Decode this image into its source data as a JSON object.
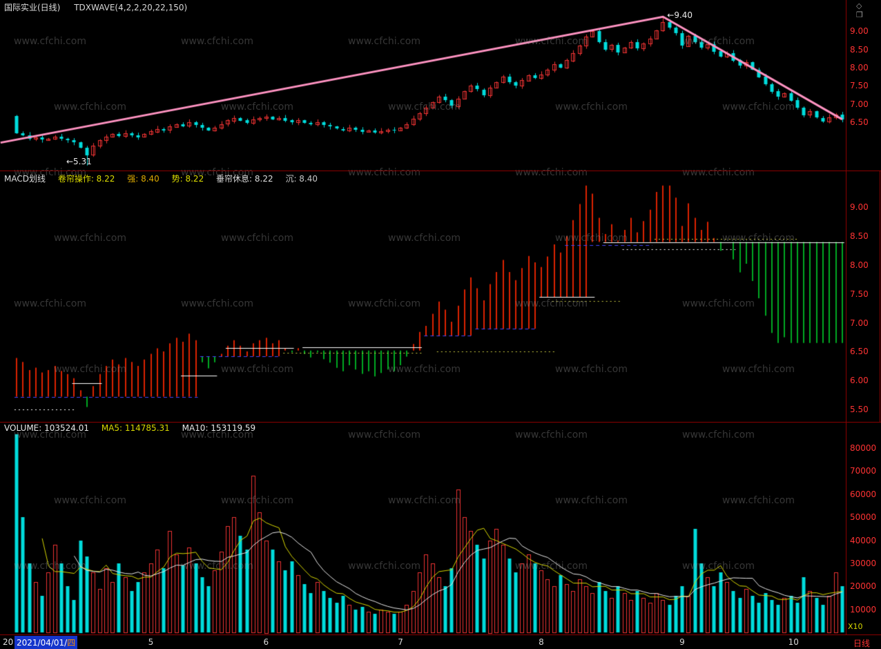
{
  "header": {
    "title": "国际实业(日线)",
    "indicator": "TDXWAVE(4,2,2,20,22,150)",
    "icons": {
      "diamond": "◇",
      "window": "❒"
    }
  },
  "watermark": "www.cfchi.com",
  "colors": {
    "up": "#ee3333",
    "down": "#00dcdc",
    "wave": "#ff93c2",
    "bar_up": "#dd2200",
    "bar_down": "#00aa22",
    "ma5": "#d8d800",
    "ma10": "#e8e8e8",
    "axis_text": "#ff3333",
    "border": "#8b0000"
  },
  "main_chart": {
    "low_annotation": "←5.31",
    "high_annotation": "←9.40",
    "y_ticks": [
      "9.00",
      "8.50",
      "8.00",
      "7.50",
      "7.00",
      "6.50"
    ]
  },
  "macd_panel": {
    "labels": [
      {
        "text": "MACD划线",
        "color": "#dddddd"
      },
      {
        "text": "卷帘操作: 8.22",
        "color": "#dddd00"
      },
      {
        "text": "强: 8.40",
        "color": "#ddaa00"
      },
      {
        "text": "势: 8.22",
        "color": "#dddd00"
      },
      {
        "text": "垂帘休息: 8.22",
        "color": "#dddddd"
      },
      {
        "text": "沉: 8.40",
        "color": "#c8c8c8"
      }
    ],
    "y_ticks": [
      "9.00",
      "8.50",
      "8.00",
      "7.50",
      "7.00",
      "6.50",
      "6.00",
      "5.50"
    ]
  },
  "volume_panel": {
    "labels": [
      {
        "text": "VOLUME: 103524.01",
        "color": "#e8e8e8"
      },
      {
        "text": "MA5: 114785.31",
        "color": "#d8d800"
      },
      {
        "text": "MA10: 153119.59",
        "color": "#e8e8e8"
      }
    ],
    "y_ticks": [
      "80000",
      "70000",
      "60000",
      "50000",
      "40000",
      "30000",
      "20000",
      "10000"
    ],
    "unit_label": "X10"
  },
  "bottom_bar": {
    "prefix": "20",
    "date": "2021/04/01/",
    "weekday": "四",
    "period_label": "日线",
    "months": [
      {
        "label": "5",
        "day": 21
      },
      {
        "label": "6",
        "day": 39
      },
      {
        "label": "7",
        "day": 60
      },
      {
        "label": "8",
        "day": 82
      },
      {
        "label": "9",
        "day": 104
      },
      {
        "label": "10",
        "day": 121
      }
    ]
  },
  "chart_data": [
    {
      "type": "candlestick",
      "title": "国际实业 daily price with TDXWAVE trend line",
      "x_range": "2021/04/01 - 2021/10",
      "ylim": [
        5.25,
        9.48
      ],
      "first_open": 6.68,
      "closes": [
        6.2,
        6.15,
        6.05,
        6.08,
        6.02,
        6.05,
        6.1,
        6.04,
        6.0,
        5.95,
        5.8,
        5.6,
        5.85,
        6.0,
        6.1,
        6.18,
        6.12,
        6.2,
        6.15,
        6.1,
        6.18,
        6.25,
        6.32,
        6.28,
        6.38,
        6.45,
        6.4,
        6.5,
        6.42,
        6.35,
        6.28,
        6.35,
        6.45,
        6.55,
        6.62,
        6.55,
        6.48,
        6.58,
        6.62,
        6.65,
        6.58,
        6.62,
        6.55,
        6.5,
        6.55,
        6.48,
        6.44,
        6.5,
        6.42,
        6.38,
        6.32,
        6.28,
        6.35,
        6.3,
        6.25,
        6.28,
        6.22,
        6.26,
        6.3,
        6.28,
        6.35,
        6.45,
        6.6,
        6.75,
        6.9,
        7.05,
        7.2,
        7.1,
        6.95,
        7.15,
        7.35,
        7.5,
        7.4,
        7.25,
        7.45,
        7.6,
        7.75,
        7.6,
        7.5,
        7.65,
        7.8,
        7.72,
        7.82,
        7.95,
        8.1,
        8.0,
        8.2,
        8.4,
        8.6,
        8.85,
        9.0,
        8.7,
        8.5,
        8.62,
        8.42,
        8.55,
        8.7,
        8.52,
        8.66,
        8.8,
        9.02,
        9.25,
        9.1,
        8.95,
        8.6,
        8.88,
        8.7,
        8.55,
        8.65,
        8.45,
        8.3,
        8.4,
        8.2,
        8.05,
        8.15,
        7.95,
        7.75,
        7.55,
        7.35,
        7.2,
        7.3,
        7.1,
        6.9,
        6.7,
        6.8,
        6.62,
        6.52,
        6.64,
        6.72,
        6.58
      ],
      "low_override_day": 11,
      "low_override_value": 5.31,
      "high_override_day": 101,
      "high_override_value": 9.4,
      "wave_points": [
        [
          -2.5,
          5.94
        ],
        [
          101,
          9.4
        ],
        [
          129,
          6.58
        ]
      ]
    },
    {
      "type": "bar",
      "title": "MACD划线 stepped-level indicator (red above level / green below level)",
      "ylim": [
        5.32,
        9.58
      ],
      "base_steps": [
        [
          0,
          28,
          5.72
        ],
        [
          29,
          41,
          6.42
        ],
        [
          42,
          63,
          6.52
        ],
        [
          64,
          71,
          6.78
        ],
        [
          72,
          81,
          6.9
        ],
        [
          82,
          89,
          7.45
        ],
        [
          90,
          129,
          8.4
        ]
      ],
      "baseline_segments": [
        [
          0,
          28,
          5.72,
          "blue",
          "dashed"
        ],
        [
          0,
          9,
          5.5,
          "white",
          "dotted"
        ],
        [
          9,
          13,
          5.95,
          "white",
          "solid"
        ],
        [
          26,
          31,
          6.08,
          "white",
          "solid"
        ],
        [
          29,
          41,
          6.42,
          "blue",
          "dashed"
        ],
        [
          33,
          43,
          6.56,
          "white",
          "solid"
        ],
        [
          42,
          63,
          6.48,
          "yellow",
          "dotted"
        ],
        [
          45,
          63,
          6.58,
          "white",
          "solid"
        ],
        [
          64,
          71,
          6.78,
          "blue",
          "dashed"
        ],
        [
          66,
          84,
          6.5,
          "yellow",
          "dotted"
        ],
        [
          72,
          81,
          6.9,
          "blue",
          "dashed"
        ],
        [
          82,
          90,
          7.45,
          "white",
          "solid"
        ],
        [
          84,
          94,
          7.38,
          "yellow",
          "dotted"
        ],
        [
          86,
          99,
          8.35,
          "blue",
          "dashed"
        ],
        [
          92,
          129,
          8.4,
          "white",
          "solid"
        ],
        [
          95,
          112,
          8.28,
          "white",
          "dotted"
        ],
        [
          100,
          122,
          8.46,
          "yellow",
          "dotted"
        ]
      ]
    },
    {
      "type": "bar",
      "title": "VOLUME (X10) with MA5 / MA10",
      "ylim": [
        0,
        88000
      ],
      "values": [
        86000,
        50000,
        30000,
        22000,
        16000,
        26000,
        38000,
        30000,
        20000,
        14000,
        40000,
        33000,
        26000,
        19000,
        28000,
        22000,
        30000,
        24000,
        18000,
        22000,
        26000,
        30000,
        36000,
        28000,
        44000,
        34000,
        29000,
        37000,
        30000,
        24000,
        20000,
        27000,
        35000,
        46000,
        50000,
        42000,
        36000,
        68000,
        52000,
        40000,
        36000,
        31000,
        27000,
        31000,
        25000,
        21000,
        17000,
        22000,
        18000,
        15000,
        13000,
        16000,
        12000,
        10000,
        11000,
        9000,
        8000,
        10000,
        9000,
        8000,
        9000,
        12000,
        18000,
        26000,
        34000,
        30000,
        24000,
        20000,
        28000,
        62000,
        50000,
        44000,
        38000,
        32000,
        40000,
        45000,
        38000,
        32000,
        26000,
        30000,
        34000,
        30000,
        27000,
        23000,
        20000,
        25000,
        21000,
        18000,
        23000,
        20000,
        17000,
        22000,
        18000,
        15000,
        20000,
        17000,
        14000,
        18000,
        15000,
        13000,
        17000,
        14000,
        12000,
        16000,
        20000,
        16000,
        45000,
        30000,
        24000,
        20000,
        26000,
        22000,
        18000,
        15000,
        19000,
        16000,
        13000,
        17000,
        14000,
        12000,
        15000,
        16000,
        13000,
        24000,
        18000,
        15000,
        12000,
        16000,
        26000,
        20000
      ]
    }
  ]
}
